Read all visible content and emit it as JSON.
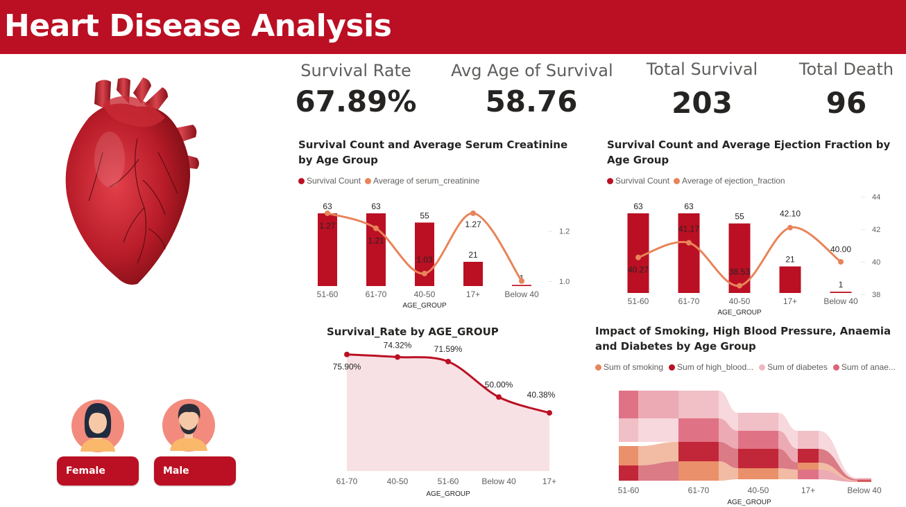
{
  "header": {
    "title": "Heart Disease Analysis"
  },
  "kpis": [
    {
      "label": "Survival Rate",
      "value": "67.89%"
    },
    {
      "label": "Avg Age of Survival",
      "value": "58.76"
    },
    {
      "label": "Total Survival",
      "value": "203"
    },
    {
      "label": "Total Death",
      "value": "96"
    }
  ],
  "slicer": {
    "female_label": "Female",
    "male_label": "Male"
  },
  "colors": {
    "brand": "#bb0f23",
    "accent": "#e8845a",
    "pink_light": "#f0b8c0",
    "pink_mid": "#dc6478"
  },
  "chart_data": [
    {
      "type": "bar",
      "title": "Survival Count and Average Serum Creatinine by Age Group",
      "legend": [
        "Survival Count",
        "Average of serum_creatinine"
      ],
      "xlabel": "AGE_GROUP",
      "categories": [
        "51-60",
        "61-70",
        "40-50",
        "17+",
        "Below 40"
      ],
      "series": [
        {
          "name": "Survival Count",
          "kind": "bar",
          "values": [
            63,
            63,
            55,
            21,
            1
          ],
          "labels": [
            "63",
            "63",
            "55",
            "21",
            "1"
          ]
        },
        {
          "name": "Average of serum_creatinine",
          "kind": "line",
          "values": [
            1.27,
            1.21,
            1.03,
            1.27,
            1.0
          ],
          "labels": [
            "1.27",
            "1.21",
            "1.03",
            "1.27",
            ""
          ]
        }
      ],
      "y2_ticks": [
        "1.2",
        "1.0"
      ],
      "y2lim": [
        0.98,
        1.3
      ]
    },
    {
      "type": "bar",
      "title": "Survival Count and Average Ejection Fraction by Age Group",
      "legend": [
        "Survival Count",
        "Average of ejection_fraction"
      ],
      "xlabel": "AGE_GROUP",
      "categories": [
        "51-60",
        "61-70",
        "40-50",
        "17+",
        "Below 40"
      ],
      "series": [
        {
          "name": "Survival Count",
          "kind": "bar",
          "values": [
            63,
            63,
            55,
            21,
            1
          ],
          "labels": [
            "63",
            "63",
            "55",
            "21",
            "1"
          ]
        },
        {
          "name": "Average of ejection_fraction",
          "kind": "line",
          "values": [
            40.27,
            41.17,
            38.53,
            42.1,
            40.0
          ],
          "labels": [
            "40.27",
            "41.17",
            "38.53",
            "42.10",
            "40.00"
          ]
        }
      ],
      "y2_ticks": [
        "44",
        "42",
        "40",
        "38"
      ],
      "y2lim": [
        38,
        44
      ]
    },
    {
      "type": "area",
      "title": "Survival_Rate by AGE_GROUP",
      "xlabel": "AGE_GROUP",
      "categories": [
        "61-70",
        "40-50",
        "51-60",
        "Below 40",
        "17+"
      ],
      "values": [
        75.9,
        74.32,
        71.59,
        50.0,
        40.38
      ],
      "labels": [
        "75.90%",
        "74.32%",
        "71.59%",
        "50.00%",
        "40.38%"
      ],
      "ylim": [
        0,
        80
      ]
    },
    {
      "type": "ribbon",
      "title": "Impact of Smoking, High Blood Pressure, Anaemia and Diabetes by Age Group",
      "legend": [
        "Sum of smoking",
        "Sum of high_blood...",
        "Sum of diabetes",
        "Sum of anae..."
      ],
      "xlabel": "AGE_GROUP",
      "categories": [
        "51-60",
        "61-70",
        "40-50",
        "17+",
        "Below 40"
      ]
    }
  ]
}
